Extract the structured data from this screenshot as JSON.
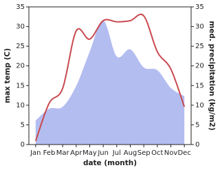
{
  "chart_data": {
    "type": "line",
    "x_label": "date (month)",
    "y_label": "max temp (C)",
    "y2_label": "med. precipitation (kg/m2)",
    "categories": [
      "Jan",
      "Feb",
      "Mar",
      "Apr",
      "May",
      "Jun",
      "Jul",
      "Aug",
      "Sep",
      "Oct",
      "Nov",
      "Dec"
    ],
    "series": [
      {
        "name": "med. precipitation",
        "color": "#b3bdf0",
        "fill": true,
        "axis": "y2",
        "values": [
          6.1,
          9.1,
          9.6,
          14.9,
          23.6,
          31.5,
          22.4,
          24.2,
          19.6,
          18.9,
          14.4,
          12.3
        ]
      },
      {
        "name": "max temp",
        "color": "#c8494f",
        "values": [
          0.9,
          10.5,
          14.3,
          28.9,
          26.8,
          31.5,
          31.2,
          31.5,
          32.7,
          23.6,
          19.2,
          9.6
        ]
      }
    ],
    "ylim": [
      0,
      35
    ],
    "yticks": [
      0,
      5,
      10,
      15,
      20,
      25,
      30,
      35
    ],
    "y2lim": [
      0,
      35
    ],
    "y2ticks": [
      0,
      5,
      10,
      15,
      20,
      25,
      30,
      35
    ]
  }
}
